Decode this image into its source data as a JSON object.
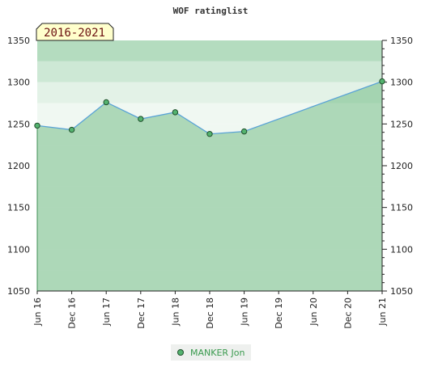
{
  "chart_data": {
    "type": "area",
    "title": "WOF ratinglist",
    "period_label": "2016-2021",
    "x": [
      "Jun 16",
      "Dec 16",
      "Jun 17",
      "Dec 17",
      "Jun 18",
      "Dec 18",
      "Jun 19",
      "Dec 19",
      "Jun 20",
      "Dec 20",
      "Jun 21"
    ],
    "ylim": [
      1050,
      1350
    ],
    "yticks": [
      1050,
      1100,
      1150,
      1200,
      1250,
      1300,
      1350
    ],
    "series": [
      {
        "name": "MANKER Jon",
        "points": [
          {
            "x": "Jun 16",
            "y": 1248
          },
          {
            "x": "Dec 16",
            "y": 1243
          },
          {
            "x": "Jun 17",
            "y": 1276
          },
          {
            "x": "Dec 17",
            "y": 1256
          },
          {
            "x": "Jun 18",
            "y": 1264
          },
          {
            "x": "Dec 18",
            "y": 1238
          },
          {
            "x": "Jun 19",
            "y": 1241
          },
          {
            "x": "Jun 21",
            "y": 1301
          }
        ]
      }
    ],
    "legend_position": "bottom-center",
    "colors": {
      "line": "#5aa3d6",
      "marker": "#54b36f",
      "area": "#8ac79a"
    }
  }
}
